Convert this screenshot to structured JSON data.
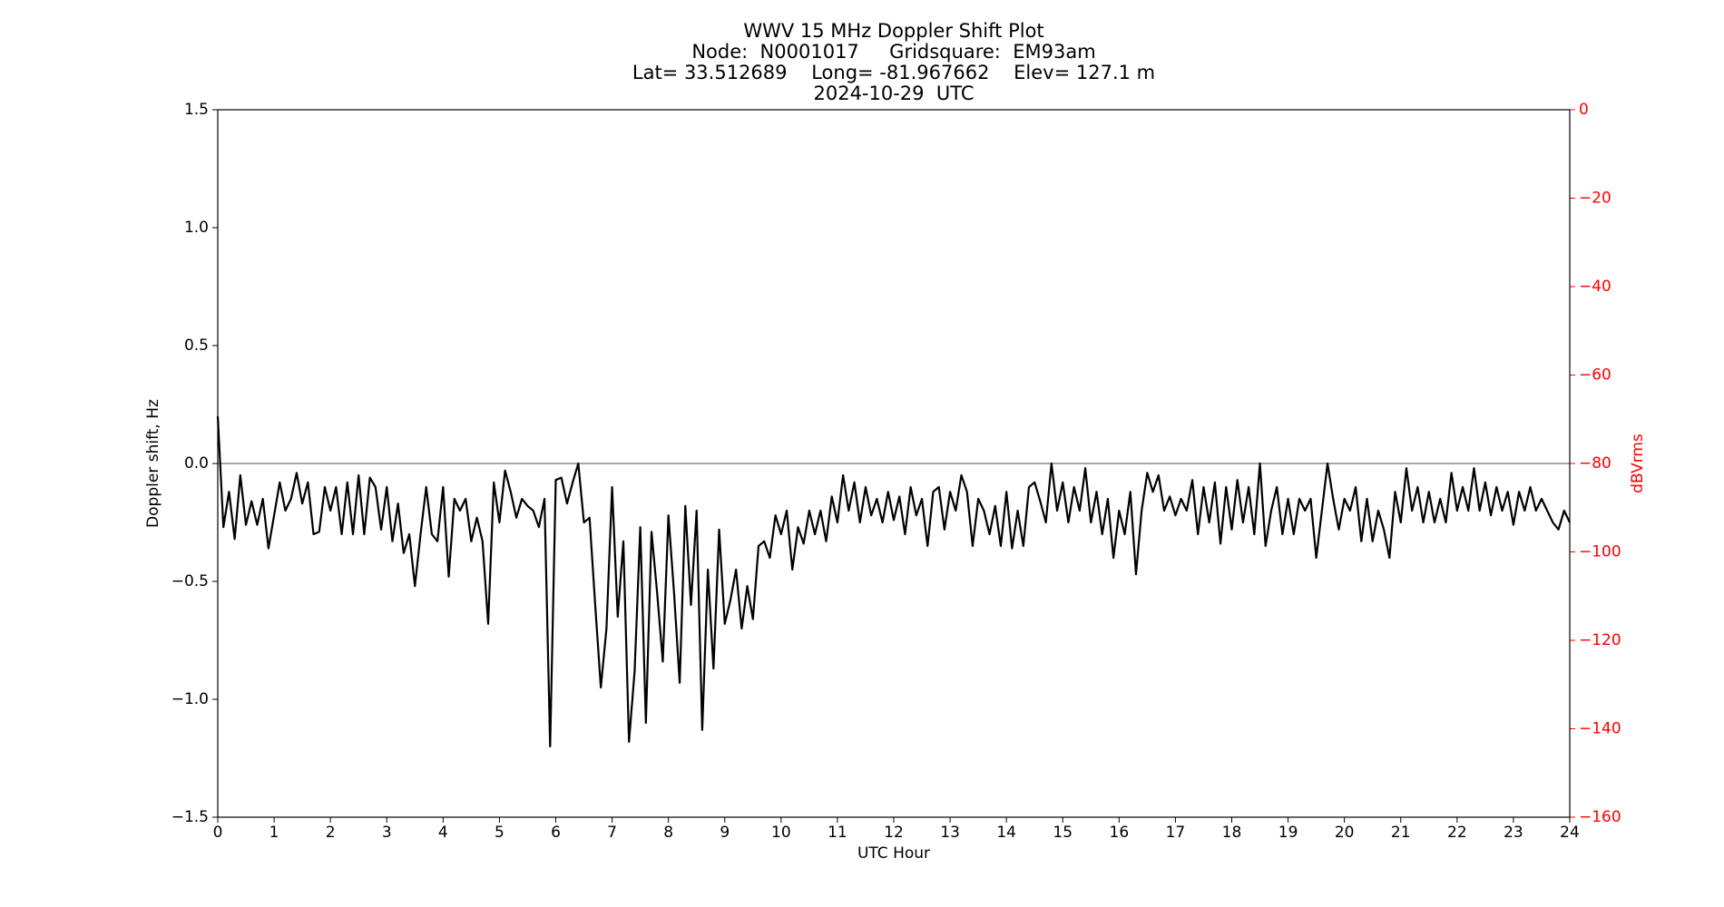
{
  "chart_data": {
    "type": "line",
    "title": [
      "WWV 15 MHz Doppler Shift Plot",
      "Node:  N0001017     Gridsquare:  EM93am",
      "Lat= 33.512689    Long= -81.967662    Elev= 127.1 m",
      "2024-10-29  UTC"
    ],
    "xlabel": "UTC Hour",
    "ylabel": "Doppler shift, Hz",
    "y2label": "dBVrms",
    "color": "#000000",
    "y2color": "#ff0000",
    "hline": 0,
    "hline_color": "#888888",
    "xlim": [
      0,
      24
    ],
    "xticks": [
      0,
      1,
      2,
      3,
      4,
      5,
      6,
      7,
      8,
      9,
      10,
      11,
      12,
      13,
      14,
      15,
      16,
      17,
      18,
      19,
      20,
      21,
      22,
      23,
      24
    ],
    "ylim": [
      -1.5,
      1.5
    ],
    "yticks": [
      {
        "value": -1.5,
        "label": "−1.5"
      },
      {
        "value": -1.0,
        "label": "−1.0"
      },
      {
        "value": -0.5,
        "label": "−0.5"
      },
      {
        "value": 0.0,
        "label": "0.0"
      },
      0.5,
      {
        "value": 1.0,
        "label": "1.0"
      },
      1.5
    ],
    "y2lim": [
      -160,
      0
    ],
    "y2ticks": [
      {
        "value": -160,
        "label": "−160"
      },
      {
        "value": -140,
        "label": "−140"
      },
      {
        "value": -120,
        "label": "−120"
      },
      {
        "value": -100,
        "label": "−100"
      },
      {
        "value": -80,
        "label": "−80"
      },
      {
        "value": -60,
        "label": "−60"
      },
      {
        "value": -40,
        "label": "−40"
      },
      {
        "value": -20,
        "label": "−20"
      },
      0
    ],
    "x": [
      0,
      0.1,
      0.2,
      0.3,
      0.4,
      0.5,
      0.6,
      0.7,
      0.8,
      0.9,
      1,
      1.1,
      1.2,
      1.3,
      1.4,
      1.5,
      1.6,
      1.7,
      1.8,
      1.9,
      2,
      2.1,
      2.2,
      2.3,
      2.4,
      2.5,
      2.6,
      2.7,
      2.8,
      2.9,
      3,
      3.1,
      3.2,
      3.3,
      3.4,
      3.5,
      3.6,
      3.7,
      3.8,
      3.9,
      4,
      4.1,
      4.2,
      4.3,
      4.4,
      4.5,
      4.6,
      4.7,
      4.8,
      4.9,
      5,
      5.1,
      5.2,
      5.3,
      5.4,
      5.5,
      5.6,
      5.7,
      5.8,
      5.9,
      6,
      6.1,
      6.2,
      6.3,
      6.4,
      6.5,
      6.6,
      6.7,
      6.8,
      6.9,
      7,
      7.1,
      7.2,
      7.3,
      7.4,
      7.5,
      7.6,
      7.7,
      7.8,
      7.9,
      8,
      8.1,
      8.2,
      8.3,
      8.4,
      8.5,
      8.6,
      8.7,
      8.8,
      8.9,
      9,
      9.1,
      9.2,
      9.3,
      9.4,
      9.5,
      9.6,
      9.7,
      9.8,
      9.9,
      10,
      10.1,
      10.2,
      10.3,
      10.4,
      10.5,
      10.6,
      10.7,
      10.8,
      10.9,
      11,
      11.1,
      11.2,
      11.3,
      11.4,
      11.5,
      11.6,
      11.7,
      11.8,
      11.9,
      12,
      12.1,
      12.2,
      12.3,
      12.4,
      12.5,
      12.6,
      12.7,
      12.8,
      12.9,
      13,
      13.1,
      13.2,
      13.3,
      13.4,
      13.5,
      13.6,
      13.7,
      13.8,
      13.9,
      14,
      14.1,
      14.2,
      14.3,
      14.4,
      14.5,
      14.6,
      14.7,
      14.8,
      14.9,
      15,
      15.1,
      15.2,
      15.3,
      15.4,
      15.5,
      15.6,
      15.7,
      15.8,
      15.9,
      16,
      16.1,
      16.2,
      16.3,
      16.4,
      16.5,
      16.6,
      16.7,
      16.8,
      16.9,
      17,
      17.1,
      17.2,
      17.3,
      17.4,
      17.5,
      17.6,
      17.7,
      17.8,
      17.9,
      18,
      18.1,
      18.2,
      18.3,
      18.4,
      18.5,
      18.6,
      18.7,
      18.8,
      18.9,
      19,
      19.1,
      19.2,
      19.3,
      19.4,
      19.5,
      19.6,
      19.7,
      19.8,
      19.9,
      20,
      20.1,
      20.2,
      20.3,
      20.4,
      20.5,
      20.6,
      20.7,
      20.8,
      20.9,
      21,
      21.1,
      21.2,
      21.3,
      21.4,
      21.5,
      21.6,
      21.7,
      21.8,
      21.9,
      22,
      22.1,
      22.2,
      22.3,
      22.4,
      22.5,
      22.6,
      22.7,
      22.8,
      22.9,
      23,
      23.1,
      23.2,
      23.3,
      23.4,
      23.5,
      23.6,
      23.7,
      23.8,
      23.9,
      24
    ],
    "values": [
      0.2,
      -0.27,
      -0.12,
      -0.32,
      -0.05,
      -0.26,
      -0.16,
      -0.26,
      -0.15,
      -0.36,
      -0.22,
      -0.08,
      -0.2,
      -0.15,
      -0.04,
      -0.17,
      -0.08,
      -0.3,
      -0.29,
      -0.1,
      -0.2,
      -0.1,
      -0.3,
      -0.08,
      -0.3,
      -0.05,
      -0.3,
      -0.06,
      -0.1,
      -0.28,
      -0.1,
      -0.33,
      -0.17,
      -0.38,
      -0.3,
      -0.52,
      -0.3,
      -0.1,
      -0.3,
      -0.33,
      -0.1,
      -0.48,
      -0.15,
      -0.2,
      -0.15,
      -0.33,
      -0.23,
      -0.33,
      -0.68,
      -0.08,
      -0.25,
      -0.03,
      -0.12,
      -0.23,
      -0.15,
      -0.18,
      -0.2,
      -0.27,
      -0.15,
      -1.2,
      -0.07,
      -0.06,
      -0.17,
      -0.08,
      0.0,
      -0.25,
      -0.23,
      -0.6,
      -0.95,
      -0.7,
      -0.1,
      -0.65,
      -0.33,
      -1.18,
      -0.88,
      -0.27,
      -1.1,
      -0.29,
      -0.55,
      -0.84,
      -0.22,
      -0.55,
      -0.93,
      -0.18,
      -0.6,
      -0.2,
      -1.13,
      -0.45,
      -0.87,
      -0.28,
      -0.68,
      -0.58,
      -0.45,
      -0.7,
      -0.52,
      -0.66,
      -0.35,
      -0.33,
      -0.4,
      -0.22,
      -0.3,
      -0.2,
      -0.45,
      -0.27,
      -0.34,
      -0.2,
      -0.3,
      -0.2,
      -0.33,
      -0.14,
      -0.25,
      -0.05,
      -0.2,
      -0.08,
      -0.25,
      -0.1,
      -0.22,
      -0.15,
      -0.25,
      -0.12,
      -0.24,
      -0.14,
      -0.3,
      -0.1,
      -0.22,
      -0.15,
      -0.35,
      -0.12,
      -0.1,
      -0.28,
      -0.12,
      -0.2,
      -0.05,
      -0.12,
      -0.35,
      -0.15,
      -0.2,
      -0.3,
      -0.18,
      -0.35,
      -0.12,
      -0.36,
      -0.2,
      -0.35,
      -0.1,
      -0.08,
      -0.16,
      -0.25,
      0.0,
      -0.2,
      -0.08,
      -0.25,
      -0.1,
      -0.2,
      -0.02,
      -0.25,
      -0.12,
      -0.3,
      -0.15,
      -0.4,
      -0.2,
      -0.3,
      -0.12,
      -0.47,
      -0.2,
      -0.04,
      -0.12,
      -0.05,
      -0.2,
      -0.14,
      -0.22,
      -0.15,
      -0.2,
      -0.07,
      -0.3,
      -0.1,
      -0.25,
      -0.08,
      -0.34,
      -0.1,
      -0.28,
      -0.07,
      -0.25,
      -0.1,
      -0.3,
      0.0,
      -0.35,
      -0.2,
      -0.1,
      -0.3,
      -0.15,
      -0.3,
      -0.15,
      -0.2,
      -0.15,
      -0.4,
      -0.2,
      0.0,
      -0.15,
      -0.28,
      -0.15,
      -0.2,
      -0.1,
      -0.33,
      -0.15,
      -0.33,
      -0.2,
      -0.28,
      -0.4,
      -0.12,
      -0.25,
      -0.02,
      -0.2,
      -0.1,
      -0.25,
      -0.12,
      -0.25,
      -0.15,
      -0.25,
      -0.04,
      -0.2,
      -0.1,
      -0.2,
      -0.02,
      -0.2,
      -0.08,
      -0.22,
      -0.1,
      -0.2,
      -0.12,
      -0.26,
      -0.12,
      -0.2,
      -0.1,
      -0.2,
      -0.15,
      -0.2,
      -0.25,
      -0.28,
      -0.2,
      -0.25
    ]
  }
}
